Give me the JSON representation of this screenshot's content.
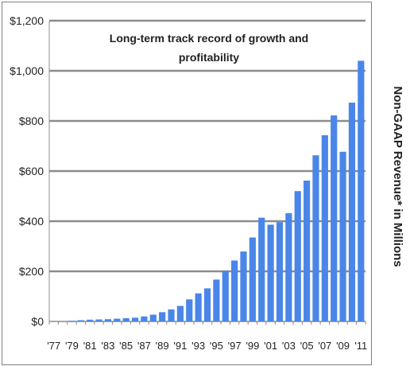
{
  "chart_data": {
    "type": "bar",
    "title_lines": [
      "Long-term track record of growth and",
      "profitability"
    ],
    "ylabel": "Non-GAAP Revenue* in Millions",
    "xlabel": "",
    "ylim": [
      0,
      1200
    ],
    "y_ticks": [
      "$0",
      "$200",
      "$400",
      "$600",
      "$800",
      "$1,000",
      "$1,200"
    ],
    "y_tick_values": [
      0,
      200,
      400,
      600,
      800,
      1000,
      1200
    ],
    "x_tick_labels": [
      "'77",
      "'79",
      "'81",
      "'83",
      "'85",
      "'87",
      "'89",
      "'91",
      "'93",
      "'95",
      "'97",
      "'99",
      "'01",
      "'03",
      "'05",
      "'07",
      "'09",
      "'11"
    ],
    "categories": [
      "'77",
      "'78",
      "'79",
      "'80",
      "'81",
      "'82",
      "'83",
      "'84",
      "'85",
      "'86",
      "'87",
      "'88",
      "'89",
      "'90",
      "'91",
      "'92",
      "'93",
      "'94",
      "'95",
      "'96",
      "'97",
      "'98",
      "'99",
      "'00",
      "'01",
      "'02",
      "'03",
      "'04",
      "'05",
      "'06",
      "'07",
      "'08",
      "'09",
      "'10",
      "'11"
    ],
    "values": [
      0,
      1,
      3,
      5,
      7,
      8,
      9,
      11,
      13,
      15,
      20,
      27,
      37,
      48,
      62,
      88,
      112,
      132,
      167,
      202,
      243,
      279,
      335,
      414,
      386,
      396,
      432,
      520,
      562,
      663,
      743,
      822,
      677,
      873,
      1040
    ],
    "grid": true,
    "legend": "none",
    "colors": {
      "bar": "#4a86e8",
      "grid": "#8c8c8c",
      "axis": "#8c8c8c",
      "frame": "#7f7f7f"
    }
  }
}
